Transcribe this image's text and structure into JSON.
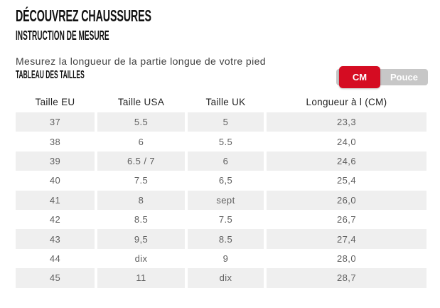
{
  "header": {
    "title": "DÉCOUVREZ CHAUSSURES",
    "subtitle": "INSTRUCTION DE MESURE"
  },
  "instructions": {
    "text": "Mesurez la longueur de la partie longue de votre pied"
  },
  "size_table": {
    "heading": "TABLEAU DES TAILLES",
    "unit_toggle": {
      "options": [
        {
          "label": "CM",
          "active": true
        },
        {
          "label": "Pouce",
          "active": false
        }
      ]
    },
    "columns": [
      "Taille EU",
      "Taille USA",
      "Taille UK",
      "Longueur à l (CM)"
    ],
    "rows": [
      [
        "37",
        "5.5",
        "5",
        "23,3"
      ],
      [
        "38",
        "6",
        "5.5",
        "24,0"
      ],
      [
        "39",
        "6.5 / 7",
        "6",
        "24,6"
      ],
      [
        "40",
        "7.5",
        "6,5",
        "25,4"
      ],
      [
        "41",
        "8",
        "sept",
        "26,0"
      ],
      [
        "42",
        "8.5",
        "7.5",
        "26,7"
      ],
      [
        "43",
        "9,5",
        "8.5",
        "27,4"
      ],
      [
        "44",
        "dix",
        "9",
        "28,0"
      ],
      [
        "45",
        "11",
        "dix",
        "28,7"
      ]
    ]
  },
  "colors": {
    "accent_red": "#d50c22",
    "toggle_gray": "#c7c7c7",
    "row_stripe": "#efefef"
  }
}
